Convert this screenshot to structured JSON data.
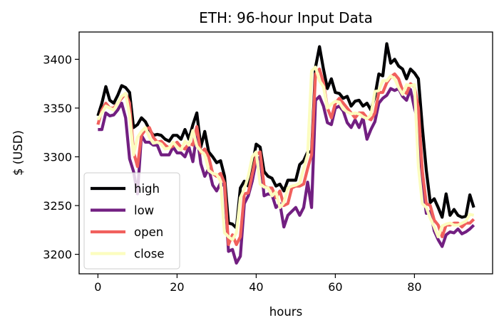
{
  "chart_data": {
    "type": "line",
    "title": "ETH: 96-hour Input Data",
    "xlabel": "hours",
    "ylabel": "$ (USD)",
    "xlim": [
      -4.75,
      99.75
    ],
    "ylim": [
      3180,
      3428
    ],
    "xticks": [
      0,
      20,
      40,
      60,
      80
    ],
    "yticks": [
      3200,
      3250,
      3300,
      3350,
      3400
    ],
    "grid": false,
    "legend_position": "lower-left",
    "series": [
      {
        "name": "high",
        "color": "#000004",
        "values": [
          3342,
          3355,
          3372,
          3358,
          3355,
          3363,
          3373,
          3371,
          3366,
          3330,
          3333,
          3340,
          3336,
          3328,
          3322,
          3323,
          3322,
          3318,
          3316,
          3322,
          3322,
          3318,
          3328,
          3318,
          3333,
          3345,
          3310,
          3326,
          3305,
          3300,
          3294,
          3296,
          3280,
          3232,
          3231,
          3227,
          3268,
          3275,
          3270,
          3290,
          3313,
          3310,
          3285,
          3280,
          3278,
          3270,
          3272,
          3265,
          3276,
          3276,
          3276,
          3292,
          3296,
          3305,
          3305,
          3392,
          3413,
          3390,
          3370,
          3380,
          3366,
          3365,
          3360,
          3362,
          3352,
          3357,
          3358,
          3352,
          3355,
          3348,
          3362,
          3385,
          3383,
          3416,
          3396,
          3400,
          3393,
          3390,
          3380,
          3390,
          3386,
          3380,
          3330,
          3286,
          3253,
          3257,
          3248,
          3238,
          3262,
          3240,
          3246,
          3240,
          3238,
          3239,
          3261,
          3248
        ]
      },
      {
        "name": "low",
        "color": "#721f81",
        "values": [
          3328,
          3328,
          3345,
          3342,
          3343,
          3348,
          3355,
          3340,
          3298,
          3285,
          3262,
          3322,
          3315,
          3315,
          3312,
          3312,
          3302,
          3302,
          3302,
          3310,
          3304,
          3304,
          3300,
          3310,
          3295,
          3324,
          3293,
          3280,
          3288,
          3271,
          3265,
          3273,
          3270,
          3203,
          3205,
          3191,
          3198,
          3252,
          3260,
          3275,
          3296,
          3300,
          3260,
          3262,
          3261,
          3248,
          3252,
          3228,
          3240,
          3244,
          3248,
          3240,
          3248,
          3274,
          3248,
          3358,
          3362,
          3352,
          3335,
          3333,
          3350,
          3352,
          3347,
          3335,
          3330,
          3338,
          3330,
          3340,
          3318,
          3328,
          3336,
          3355,
          3360,
          3363,
          3370,
          3368,
          3370,
          3362,
          3358,
          3369,
          3350,
          3336,
          3272,
          3242,
          3244,
          3224,
          3215,
          3208,
          3220,
          3223,
          3222,
          3226,
          3221,
          3223,
          3226,
          3230
        ]
      },
      {
        "name": "open",
        "color": "#f1605d",
        "values": [
          3333,
          3348,
          3355,
          3350,
          3350,
          3355,
          3360,
          3365,
          3355,
          3305,
          3290,
          3322,
          3328,
          3330,
          3320,
          3315,
          3316,
          3312,
          3309,
          3311,
          3315,
          3310,
          3308,
          3314,
          3312,
          3331,
          3304,
          3308,
          3300,
          3283,
          3280,
          3283,
          3273,
          3210,
          3220,
          3210,
          3218,
          3262,
          3263,
          3282,
          3302,
          3305,
          3270,
          3268,
          3268,
          3258,
          3265,
          3250,
          3252,
          3268,
          3270,
          3270,
          3272,
          3288,
          3302,
          3385,
          3390,
          3376,
          3350,
          3340,
          3355,
          3360,
          3355,
          3350,
          3345,
          3340,
          3345,
          3345,
          3340,
          3338,
          3345,
          3366,
          3366,
          3376,
          3382,
          3385,
          3380,
          3368,
          3365,
          3375,
          3372,
          3350,
          3285,
          3252,
          3250,
          3235,
          3230,
          3218,
          3230,
          3230,
          3232,
          3232,
          3228,
          3232,
          3232,
          3236
        ]
      },
      {
        "name": "close",
        "color": "#fcfdbf",
        "values": [
          3338,
          3345,
          3352,
          3350,
          3348,
          3355,
          3362,
          3365,
          3343,
          3302,
          3320,
          3326,
          3330,
          3320,
          3314,
          3315,
          3313,
          3308,
          3309,
          3315,
          3310,
          3307,
          3316,
          3312,
          3327,
          3311,
          3306,
          3302,
          3286,
          3283,
          3282,
          3275,
          3222,
          3218,
          3215,
          3222,
          3258,
          3267,
          3280,
          3300,
          3305,
          3272,
          3269,
          3268,
          3260,
          3264,
          3248,
          3253,
          3268,
          3270,
          3271,
          3273,
          3288,
          3302,
          3388,
          3392,
          3378,
          3372,
          3350,
          3354,
          3357,
          3356,
          3349,
          3346,
          3344,
          3345,
          3344,
          3341,
          3339,
          3343,
          3367,
          3368,
          3378,
          3378,
          3383,
          3380,
          3371,
          3364,
          3374,
          3373,
          3374,
          3290,
          3252,
          3248,
          3237,
          3228,
          3218,
          3229,
          3231,
          3232,
          3230,
          3230,
          3232,
          3234,
          3241,
          3240
        ]
      }
    ]
  }
}
